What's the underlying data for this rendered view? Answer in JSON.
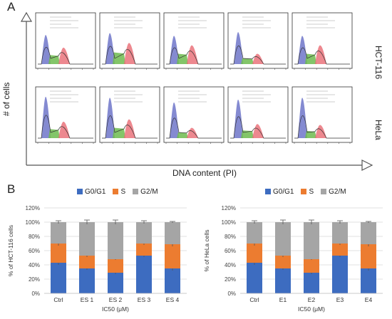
{
  "panel_a": {
    "letter": "A",
    "y_axis_title": "# of cells",
    "x_axis_title": "DNA content (PI)",
    "rows": [
      {
        "label": "HCT-116"
      },
      {
        "label": "HeLa"
      }
    ]
  },
  "panel_b": {
    "letter": "B"
  },
  "colors": {
    "G0/G1": "#3d6cc0",
    "S": "#ec7c30",
    "G2/M": "#a5a5a5",
    "histogram_g1": "#6f76c9",
    "histogram_s": "#6dbb4f",
    "histogram_g2": "#e96a73"
  },
  "chart_data": [
    {
      "type": "bar",
      "stacked": true,
      "title": "",
      "xlabel": "IC50 (μM)",
      "ylabel": "% of HCT-116 cells",
      "categories": [
        "Ctrl",
        "ES 1",
        "ES 2",
        "ES 3",
        "ES 4"
      ],
      "series": [
        {
          "name": "G0/G1",
          "values": [
            43,
            35,
            29,
            53,
            35
          ],
          "errors": [
            3,
            2,
            2,
            2,
            3
          ]
        },
        {
          "name": "S",
          "values": [
            27,
            18,
            19,
            17,
            34
          ],
          "errors": [
            3,
            2,
            1,
            2,
            3
          ]
        },
        {
          "name": "G2/M",
          "values": [
            30,
            47,
            52,
            30,
            31
          ],
          "errors": [
            2,
            3,
            3,
            2,
            1
          ]
        }
      ],
      "ylim": [
        0,
        120
      ],
      "yticks": [
        "0%",
        "20%",
        "40%",
        "60%",
        "80%",
        "100%",
        "120%"
      ],
      "legend": "top"
    },
    {
      "type": "bar",
      "stacked": true,
      "title": "",
      "xlabel": "IC50 (μM)",
      "ylabel": "% of HeLa cells",
      "categories": [
        "Ctrl",
        "E1",
        "E2",
        "E3",
        "E4"
      ],
      "series": [
        {
          "name": "G0/G1",
          "values": [
            43,
            35,
            29,
            53,
            35
          ],
          "errors": [
            3,
            2,
            2,
            2,
            3
          ]
        },
        {
          "name": "S",
          "values": [
            27,
            18,
            19,
            17,
            34
          ],
          "errors": [
            3,
            2,
            1,
            2,
            3
          ]
        },
        {
          "name": "G2/M",
          "values": [
            30,
            47,
            52,
            30,
            31
          ],
          "errors": [
            2,
            3,
            3,
            2,
            1
          ]
        }
      ],
      "ylim": [
        0,
        120
      ],
      "yticks": [
        "0%",
        "20%",
        "40%",
        "60%",
        "80%",
        "100%",
        "120%"
      ],
      "legend": "top"
    }
  ]
}
